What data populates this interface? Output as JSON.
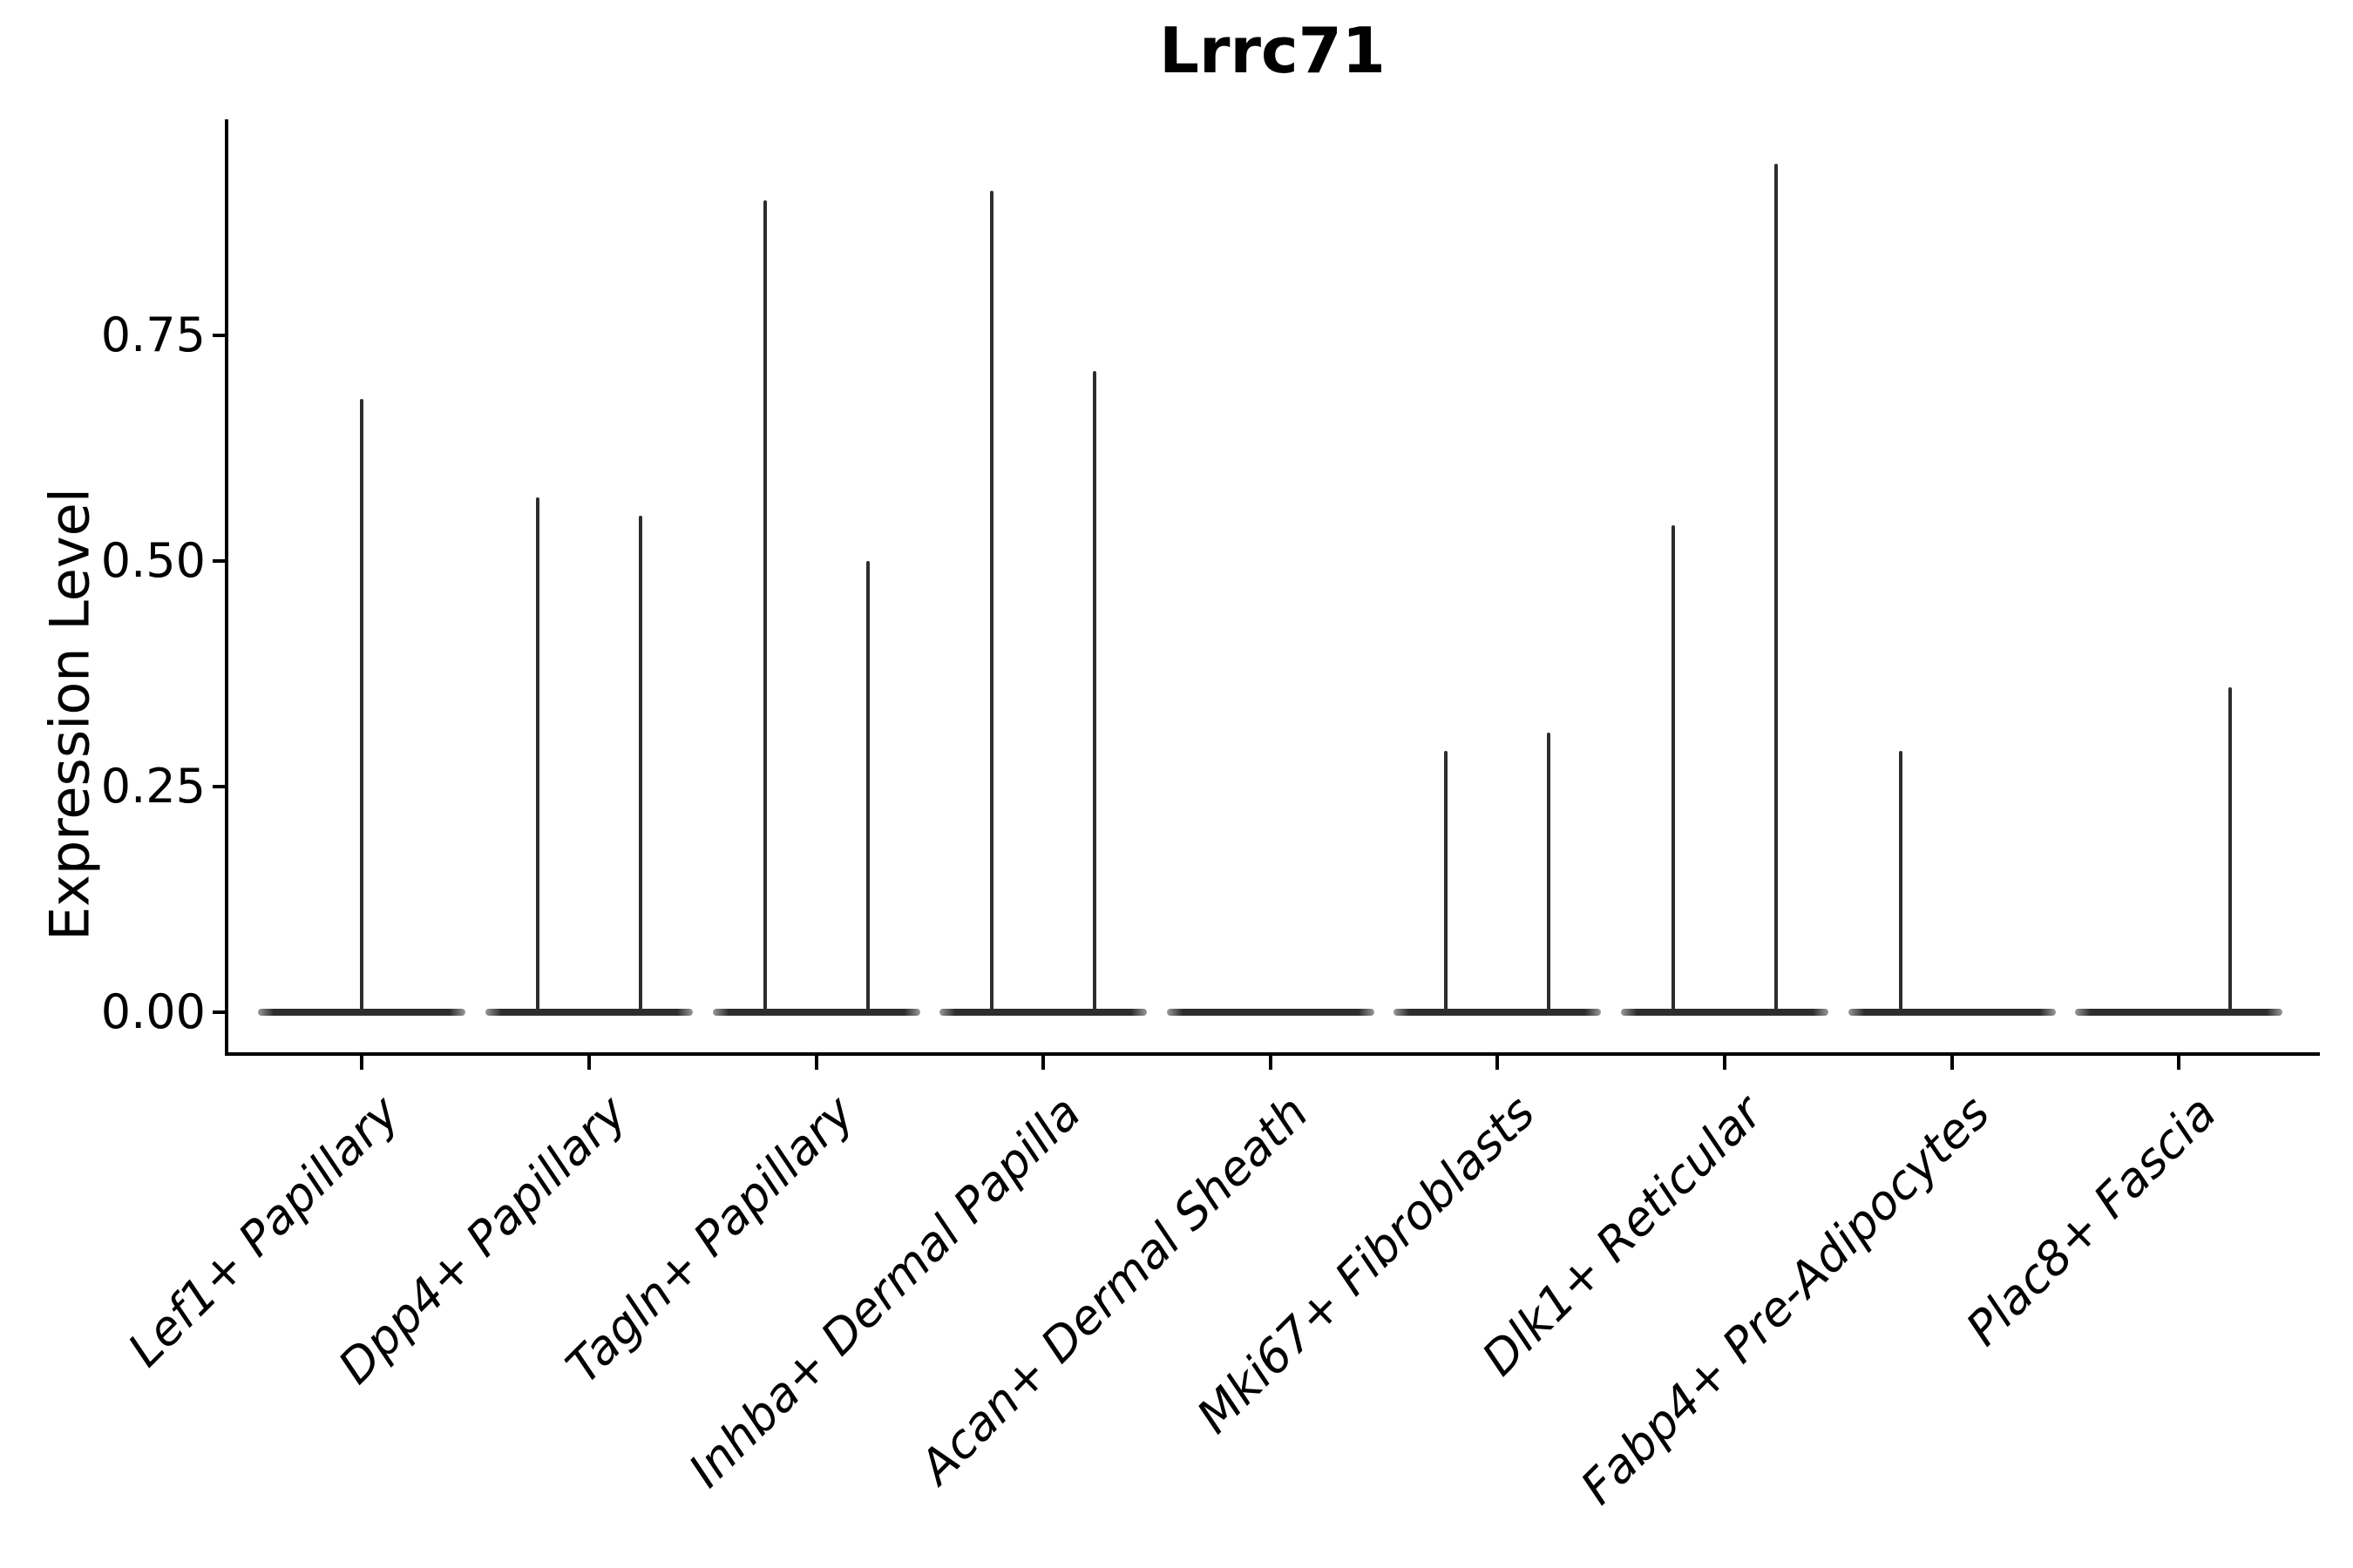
{
  "title": "Lrrc71",
  "y_axis": {
    "label": "Expression Level",
    "tick_labels": [
      "0.00",
      "0.25",
      "0.50",
      "0.75"
    ]
  },
  "x_axis": {
    "categories": [
      "Lef1+ Papillary",
      "Dpp4+ Papillary",
      "Tagln+ Papillary",
      "Inhba+ Dermal Papilla",
      "Acan+ Dermal Sheath",
      "Mki67+ Fibroblasts",
      "Dlk1+ Reticular",
      "Fabp4+ Pre-Adipocytes",
      "Plac8+ Fascia"
    ]
  },
  "style": {
    "violin_color": "#2d2d2d",
    "violin_tip_color": "#9a9a9a",
    "axis_color": "#000000",
    "background": "#ffffff",
    "text_color": "#000000"
  },
  "chart_data": {
    "type": "violin",
    "title": "Lrrc71",
    "xlabel": "",
    "ylabel": "Expression Level",
    "ylim": [
      0,
      0.99
    ],
    "yticks": [
      0,
      0.25,
      0.5,
      0.75
    ],
    "ytick_labels": [
      "0.00",
      "0.25",
      "0.50",
      "0.75"
    ],
    "grid": false,
    "legend": "none",
    "x_label_rotation_deg": 45,
    "x_label_style": "italic",
    "description": "Needle-thin collapsed violins: nearly all cells at expression 0 (flat baseline per category); sparse expressing cells form vertical spikes up to the listed peak expression. Dodged split violins give up to two spikes per category.",
    "categories": [
      "Lef1+ Papillary",
      "Dpp4+ Papillary",
      "Tagln+ Papillary",
      "Inhba+ Dermal Papilla",
      "Acan+ Dermal Sheath",
      "Mki67+ Fibroblasts",
      "Dlk1+ Reticular",
      "Fabp4+ Pre-Adipocytes",
      "Plac8+ Fascia"
    ],
    "series": [
      {
        "category": "Lef1+ Papillary",
        "baseline": 0,
        "spikes": [
          {
            "side": "center",
            "peak": 0.68
          }
        ]
      },
      {
        "category": "Dpp4+ Papillary",
        "baseline": 0,
        "spikes": [
          {
            "side": "left",
            "peak": 0.57
          },
          {
            "side": "right",
            "peak": 0.55
          }
        ]
      },
      {
        "category": "Tagln+ Papillary",
        "baseline": 0,
        "spikes": [
          {
            "side": "left",
            "peak": 0.9
          },
          {
            "side": "right",
            "peak": 0.5
          }
        ]
      },
      {
        "category": "Inhba+ Dermal Papilla",
        "baseline": 0,
        "spikes": [
          {
            "side": "left",
            "peak": 0.91
          },
          {
            "side": "right",
            "peak": 0.71
          }
        ]
      },
      {
        "category": "Acan+ Dermal Sheath",
        "baseline": 0,
        "spikes": []
      },
      {
        "category": "Mki67+ Fibroblasts",
        "baseline": 0,
        "spikes": [
          {
            "side": "left",
            "peak": 0.29
          },
          {
            "side": "right",
            "peak": 0.31
          }
        ]
      },
      {
        "category": "Dlk1+ Reticular",
        "baseline": 0,
        "spikes": [
          {
            "side": "left",
            "peak": 0.54
          },
          {
            "side": "right",
            "peak": 0.94
          }
        ]
      },
      {
        "category": "Fabp4+ Pre-Adipocytes",
        "baseline": 0,
        "spikes": [
          {
            "side": "left",
            "peak": 0.29
          }
        ]
      },
      {
        "category": "Plac8+ Fascia",
        "baseline": 0,
        "spikes": [
          {
            "side": "right",
            "peak": 0.36
          }
        ]
      }
    ]
  }
}
